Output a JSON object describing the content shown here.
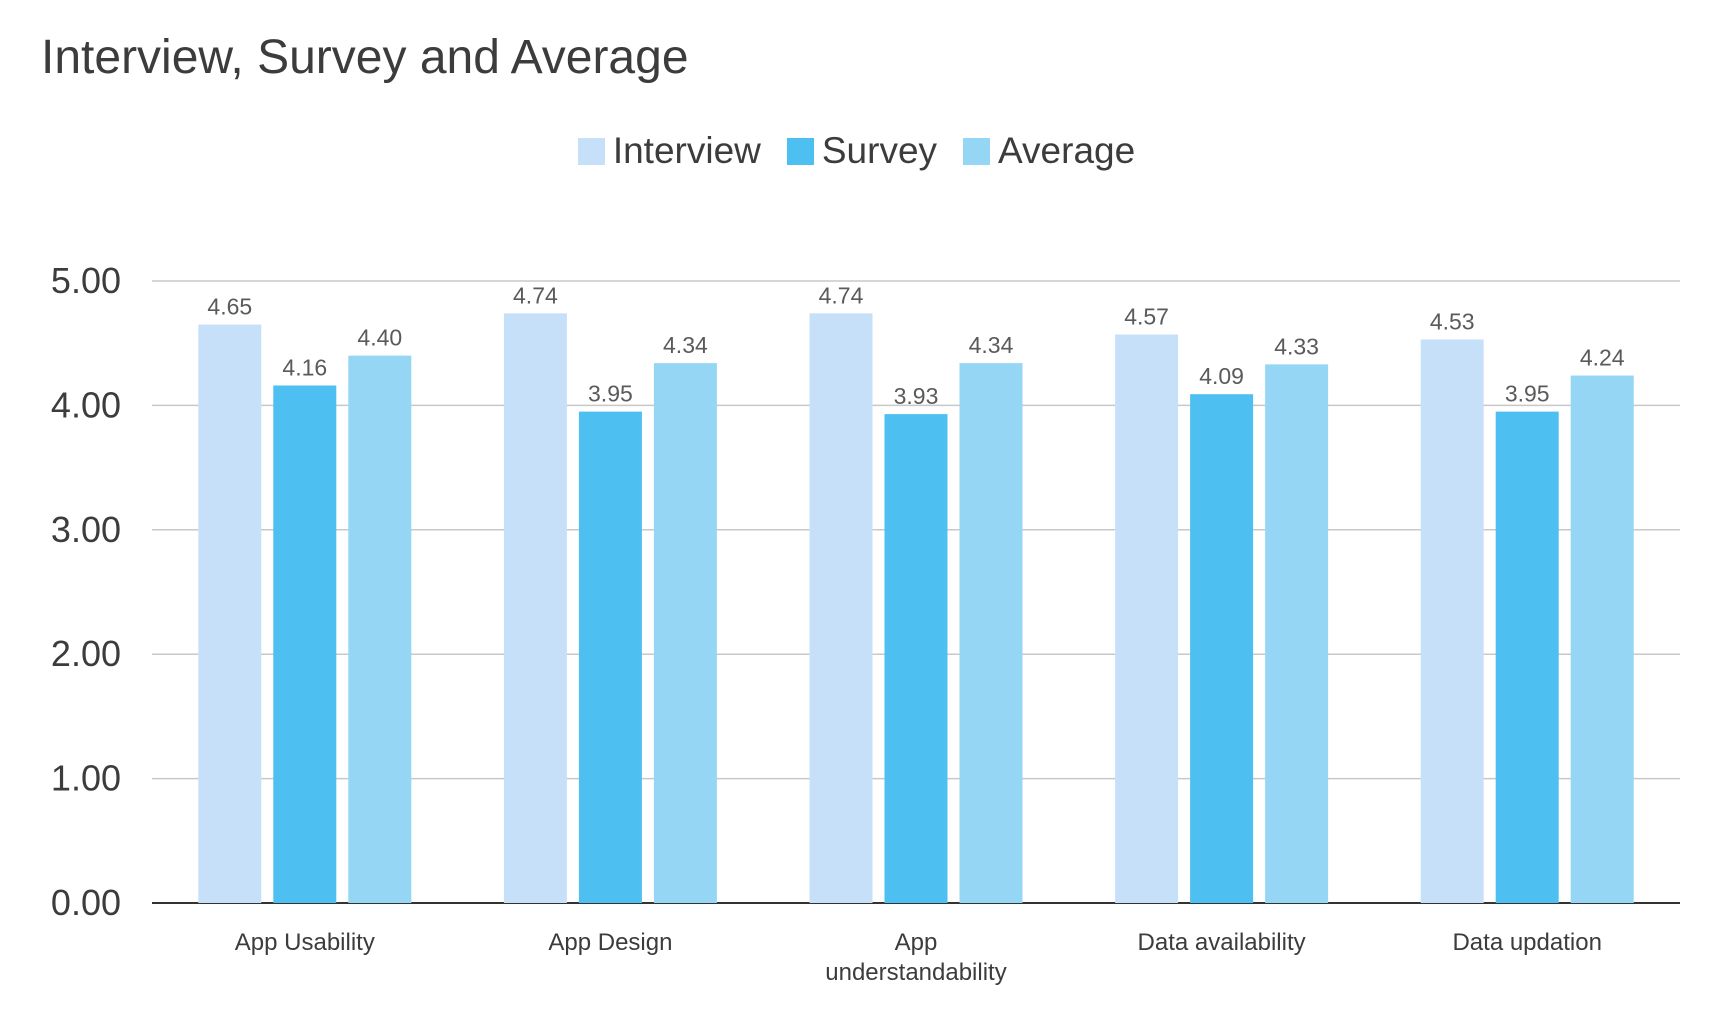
{
  "chart_data": {
    "type": "bar",
    "title": "Interview, Survey and Average",
    "xlabel": "",
    "ylabel": "",
    "ylim": [
      0,
      5
    ],
    "y_ticks": [
      "0.00",
      "1.00",
      "2.00",
      "3.00",
      "4.00",
      "5.00"
    ],
    "grid": true,
    "legend_position": "top",
    "categories": [
      [
        "App Usability"
      ],
      [
        "App Design"
      ],
      [
        "App",
        "understandability"
      ],
      [
        "Data availability"
      ],
      [
        "Data updation"
      ]
    ],
    "series": [
      {
        "name": "Interview",
        "color": "#c7e0fa",
        "values": [
          4.65,
          4.74,
          4.74,
          4.57,
          4.53
        ],
        "labels": [
          "4.65",
          "4.74",
          "4.74",
          "4.57",
          "4.53"
        ]
      },
      {
        "name": "Survey",
        "color": "#4dbff0",
        "values": [
          4.16,
          3.95,
          3.93,
          4.09,
          3.95
        ],
        "labels": [
          "4.16",
          "3.95",
          "3.93",
          "4.09",
          "3.95"
        ]
      },
      {
        "name": "Average",
        "color": "#95d6f5",
        "values": [
          4.4,
          4.34,
          4.34,
          4.33,
          4.24
        ],
        "labels": [
          "4.40",
          "4.34",
          "4.34",
          "4.33",
          "4.24"
        ]
      }
    ],
    "colors": {
      "gridline": "#c8c8c8",
      "axis": "#333333",
      "text": "#3c3c3c"
    }
  }
}
